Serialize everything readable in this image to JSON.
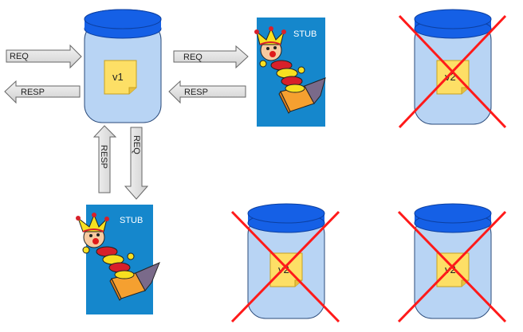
{
  "arrows": {
    "req_in": "REQ",
    "resp_out": "RESP",
    "req_to_stub_right": "REQ",
    "resp_from_stub_right": "RESP",
    "resp_from_stub_bottom": "RESP",
    "req_to_stub_bottom": "REQ"
  },
  "service": {
    "version": "v1"
  },
  "stubs": {
    "right_label": "STUB",
    "bottom_label": "STUB"
  },
  "removed_services": {
    "top_right_version": "v2",
    "bottom_middle_version": "v2",
    "bottom_right_version": "v2"
  },
  "colors": {
    "jar_body": "#b8d4f4",
    "jar_lid": "#1560e6",
    "note": "#fddf66",
    "stub_bg": "#1587cc",
    "cross": "#ff1a1a",
    "arrow_fill": "#e8e8e8"
  }
}
